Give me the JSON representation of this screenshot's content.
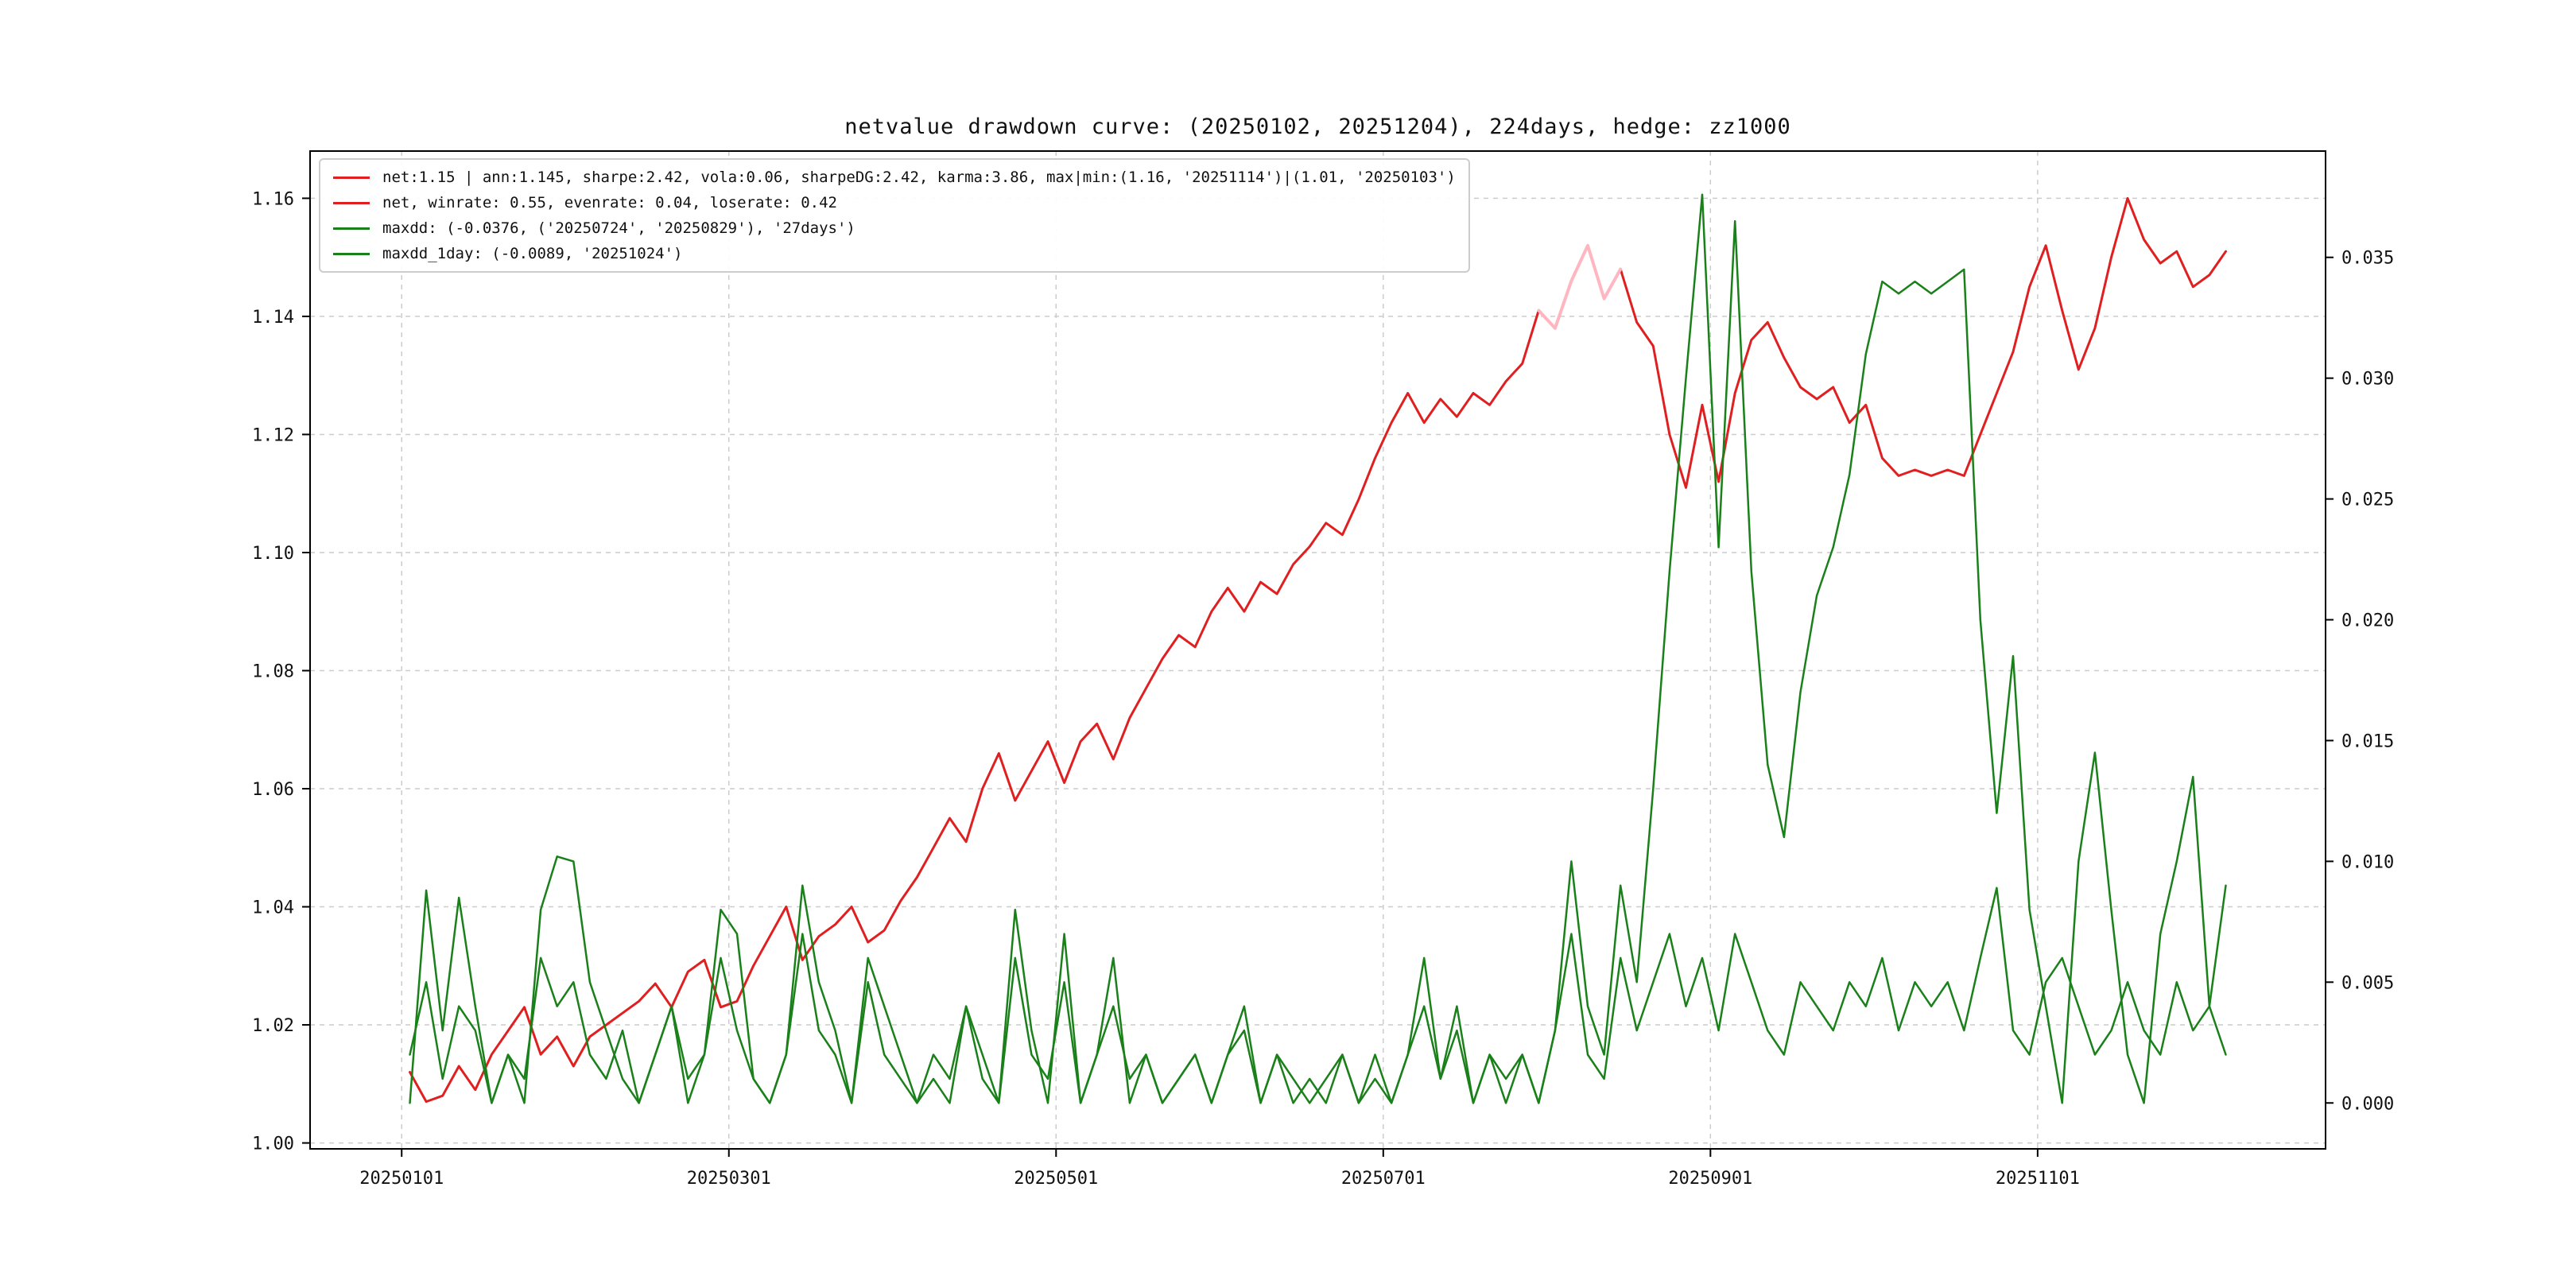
{
  "title": "netvalue drawdown curve: (20250102, 20251204), 224days, hedge: zz1000",
  "chart_data": {
    "type": "line",
    "title": "netvalue drawdown curve: (20250102, 20251204), 224days, hedge: zz1000",
    "grid": "dashed",
    "legend_position": "upper-left",
    "style": {
      "grid_color": "#cccccc",
      "spine_color": "#000000",
      "tick_label_color": "#111111",
      "net_color": "#e02020",
      "drawdown_color": "#1a801a",
      "highlight_color": "#ffb6c1"
    },
    "x_range": [
      -12.2,
      234.2
    ],
    "x_tick_positions": [
      -1,
      39,
      79,
      119,
      159,
      199
    ],
    "x_tick_labels": [
      "20250101",
      "20250301",
      "20250501",
      "20250701",
      "20250901",
      "20251101"
    ],
    "left_axis": {
      "label": "",
      "range": [
        0.999,
        1.168
      ],
      "ticks": [
        1.0,
        1.02,
        1.04,
        1.06,
        1.08,
        1.1,
        1.12,
        1.14,
        1.16
      ],
      "tick_labels": [
        "1.00",
        "1.02",
        "1.04",
        "1.06",
        "1.08",
        "1.10",
        "1.12",
        "1.14",
        "1.16"
      ]
    },
    "right_axis": {
      "label": "",
      "range": [
        -0.0019,
        0.0394
      ],
      "ticks": [
        0.0,
        0.005,
        0.01,
        0.015,
        0.02,
        0.025,
        0.03,
        0.035
      ],
      "tick_labels": [
        "0.000",
        "0.005",
        "0.010",
        "0.015",
        "0.020",
        "0.025",
        "0.030",
        "0.035"
      ]
    },
    "series": [
      {
        "name": "net",
        "axis": "left",
        "color": "#e02020",
        "width": 3,
        "x_start": 0,
        "x_step": 2,
        "values": [
          1.012,
          1.007,
          1.008,
          1.013,
          1.009,
          1.015,
          1.019,
          1.023,
          1.015,
          1.018,
          1.013,
          1.018,
          1.02,
          1.022,
          1.024,
          1.027,
          1.023,
          1.029,
          1.031,
          1.023,
          1.024,
          1.03,
          1.035,
          1.04,
          1.031,
          1.035,
          1.037,
          1.04,
          1.034,
          1.036,
          1.041,
          1.045,
          1.05,
          1.055,
          1.051,
          1.06,
          1.066,
          1.058,
          1.063,
          1.068,
          1.061,
          1.068,
          1.071,
          1.065,
          1.072,
          1.077,
          1.082,
          1.086,
          1.084,
          1.09,
          1.094,
          1.09,
          1.095,
          1.093,
          1.098,
          1.101,
          1.105,
          1.103,
          1.109,
          1.116,
          1.122,
          1.127,
          1.122,
          1.126,
          1.123,
          1.127,
          1.125,
          1.129,
          1.132,
          1.141,
          1.138,
          1.146,
          1.152,
          1.143,
          1.148,
          1.139,
          1.135,
          1.12,
          1.111,
          1.125,
          1.112,
          1.127,
          1.136,
          1.139,
          1.133,
          1.128,
          1.126,
          1.128,
          1.122,
          1.125,
          1.116,
          1.113,
          1.114,
          1.113,
          1.114,
          1.113,
          1.12,
          1.127,
          1.134,
          1.145,
          1.152,
          1.141,
          1.131,
          1.138,
          1.15,
          1.16,
          1.153,
          1.149,
          1.151,
          1.145,
          1.147,
          1.151
        ]
      },
      {
        "name": "net_maxdd_peak_highlight",
        "axis": "left",
        "color": "#ffb6c1",
        "width": 4,
        "x_start": 138,
        "x_step": 2,
        "values": [
          1.141,
          1.138,
          1.146,
          1.152,
          1.143,
          1.148
        ]
      },
      {
        "name": "maxdd",
        "axis": "right",
        "color": "#1a801a",
        "width": 2.5,
        "x_start": 0,
        "x_step": 2,
        "values": [
          0.0,
          0.0088,
          0.003,
          0.0085,
          0.004,
          0.0,
          0.002,
          0.0,
          0.008,
          0.0102,
          0.01,
          0.005,
          0.003,
          0.001,
          0.0,
          0.002,
          0.004,
          0.0,
          0.002,
          0.008,
          0.007,
          0.001,
          0.0,
          0.002,
          0.009,
          0.005,
          0.003,
          0.0,
          0.006,
          0.004,
          0.002,
          0.0,
          0.001,
          0.0,
          0.004,
          0.002,
          0.0,
          0.008,
          0.003,
          0.0,
          0.007,
          0.0,
          0.002,
          0.006,
          0.0,
          0.002,
          0.0,
          0.001,
          0.002,
          0.0,
          0.002,
          0.004,
          0.0,
          0.002,
          0.0,
          0.001,
          0.0,
          0.002,
          0.0,
          0.002,
          0.0,
          0.002,
          0.006,
          0.001,
          0.004,
          0.0,
          0.002,
          0.0,
          0.002,
          0.0,
          0.003,
          0.01,
          0.004,
          0.002,
          0.009,
          0.005,
          0.013,
          0.022,
          0.03,
          0.0376,
          0.023,
          0.0365,
          0.022,
          0.014,
          0.011,
          0.017,
          0.021,
          0.023,
          0.026,
          0.031,
          0.034,
          0.0335,
          0.034,
          0.0335,
          0.034,
          0.0345,
          0.02,
          0.012,
          0.0185,
          0.008,
          0.004,
          0.0,
          0.01,
          0.0145,
          0.008,
          0.002,
          0.0,
          0.007,
          0.01,
          0.0135,
          0.004,
          0.009
        ]
      },
      {
        "name": "maxdd_1day",
        "axis": "right",
        "color": "#1a801a",
        "width": 2.5,
        "x_start": 0,
        "x_step": 2,
        "values": [
          0.002,
          0.005,
          0.001,
          0.004,
          0.003,
          0.0,
          0.002,
          0.001,
          0.006,
          0.004,
          0.005,
          0.002,
          0.001,
          0.003,
          0.0,
          0.002,
          0.004,
          0.001,
          0.002,
          0.006,
          0.003,
          0.001,
          0.0,
          0.002,
          0.007,
          0.003,
          0.002,
          0.0,
          0.005,
          0.002,
          0.001,
          0.0,
          0.002,
          0.001,
          0.004,
          0.001,
          0.0,
          0.006,
          0.002,
          0.001,
          0.005,
          0.0,
          0.002,
          0.004,
          0.001,
          0.002,
          0.0,
          0.001,
          0.002,
          0.0,
          0.002,
          0.003,
          0.0,
          0.002,
          0.001,
          0.0,
          0.001,
          0.002,
          0.0,
          0.001,
          0.0,
          0.002,
          0.004,
          0.001,
          0.003,
          0.0,
          0.002,
          0.001,
          0.002,
          0.0,
          0.003,
          0.007,
          0.002,
          0.001,
          0.006,
          0.003,
          0.005,
          0.007,
          0.004,
          0.006,
          0.003,
          0.007,
          0.005,
          0.003,
          0.002,
          0.005,
          0.004,
          0.003,
          0.005,
          0.004,
          0.006,
          0.003,
          0.005,
          0.004,
          0.005,
          0.003,
          0.006,
          0.0089,
          0.003,
          0.002,
          0.005,
          0.006,
          0.004,
          0.002,
          0.003,
          0.005,
          0.003,
          0.002,
          0.005,
          0.003,
          0.004,
          0.002
        ]
      }
    ],
    "legend": [
      {
        "color": "#e02020",
        "label": "net:1.15 | ann:1.145, sharpe:2.42, vola:0.06, sharpeDG:2.42, karma:3.86, max|min:(1.16, '20251114')|(1.01, '20250103')"
      },
      {
        "color": "#e02020",
        "label": "net, winrate: 0.55, evenrate: 0.04, loserate: 0.42"
      },
      {
        "color": "#1a801a",
        "label": "maxdd: (-0.0376, ('20250724', '20250829'), '27days')"
      },
      {
        "color": "#1a801a",
        "label": "maxdd_1day: (-0.0089, '20251024')"
      }
    ],
    "annotations": {
      "net_final": "1.15",
      "net_max": "1.16 on 20251114",
      "net_min": "1.01 on 20250103",
      "max_drawdown": "-0.0376 from 20250724 to 20250829 (27days)",
      "max_1day_drawdown": "-0.0089 on 20251024"
    }
  }
}
